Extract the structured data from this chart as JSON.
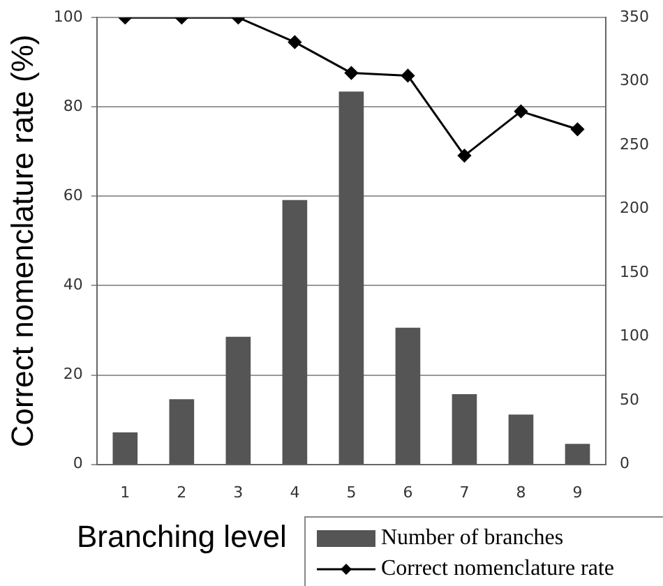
{
  "chart_data": {
    "type": "bar",
    "xlabel": "Branching level",
    "ylabel": "Correct nomenclature rate (%)",
    "categories": [
      "1",
      "2",
      "3",
      "4",
      "5",
      "6",
      "7",
      "8",
      "9"
    ],
    "series": [
      {
        "name": "Number of branches",
        "axis": "y2",
        "color": "#555555",
        "values": [
          25,
          51,
          100,
          207,
          292,
          107,
          55,
          39,
          16
        ]
      },
      {
        "name": "Correct nomenclature rate",
        "type": "line",
        "axis": "y",
        "color": "#000000",
        "marker": "diamond",
        "values": [
          100,
          100,
          100,
          94.5,
          87.6,
          87,
          69.1,
          79,
          75
        ]
      }
    ],
    "ylim": [
      0,
      100
    ],
    "yticks": [
      0,
      20,
      40,
      60,
      80,
      100
    ],
    "y2lim": [
      0,
      350
    ],
    "y2ticks": [
      0,
      50,
      100,
      150,
      200,
      250,
      300,
      350
    ],
    "grid": "y",
    "legend": "bottom right"
  }
}
